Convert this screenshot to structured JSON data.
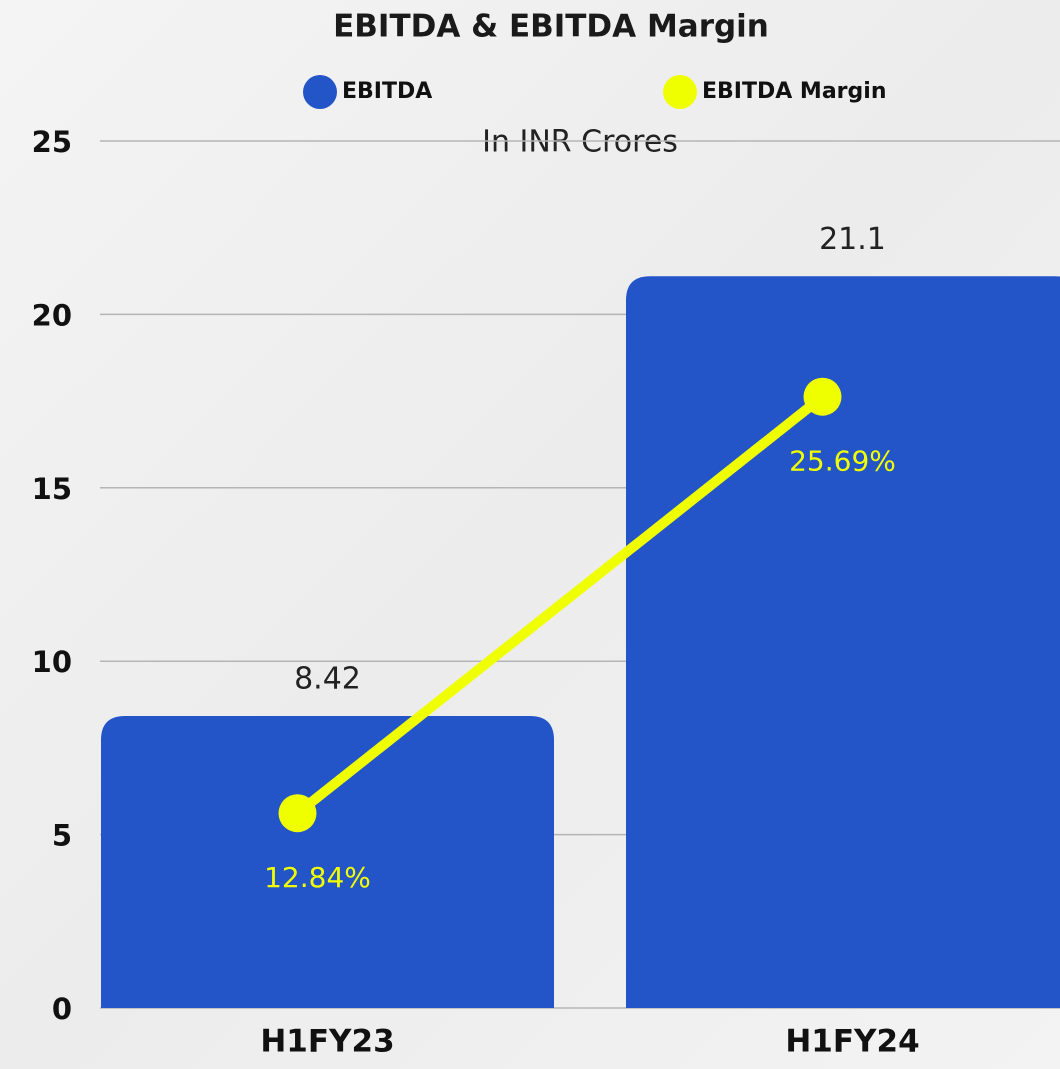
{
  "chart_data": {
    "type": "bar",
    "title": "EBITDA & EBITDA Margin",
    "subtitle": "In INR Crores",
    "categories": [
      "H1FY23",
      "H1FY24"
    ],
    "series": [
      {
        "name": "EBITDA",
        "color": "#2354c8",
        "type": "bar",
        "values": [
          8.42,
          21.1
        ]
      },
      {
        "name": "EBITDA Margin",
        "color": "#f0ff00",
        "type": "line",
        "axis": "y2",
        "values": [
          12.84,
          25.69
        ],
        "value_labels": [
          "12.84%",
          "25.69%"
        ]
      }
    ],
    "ylim": [
      0,
      25
    ],
    "yticks": [
      0,
      5,
      10,
      15,
      20,
      25
    ],
    "y2lim": [
      6.83,
      33.58
    ],
    "grid": true
  }
}
